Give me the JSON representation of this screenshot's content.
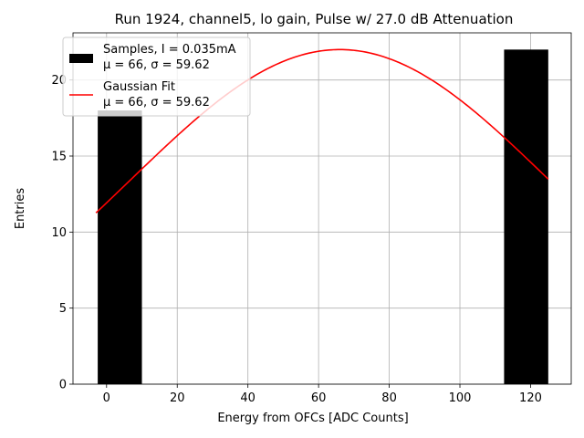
{
  "chart_data": {
    "type": "bar",
    "title": "Run 1924, channel5, lo gain, Pulse w/ 27.0 dB Attenuation",
    "xlabel": "Energy from OFCs [ADC Counts]",
    "ylabel": "Entries",
    "xlim": [
      -9.5,
      131.5
    ],
    "ylim": [
      0,
      23.1
    ],
    "xticks": [
      0,
      20,
      40,
      60,
      80,
      100,
      120
    ],
    "yticks": [
      0,
      5,
      10,
      15,
      20
    ],
    "grid": true,
    "bars": [
      {
        "x_start": -2.5,
        "x_end": 10,
        "value": 18
      },
      {
        "x_start": 112.5,
        "x_end": 125,
        "value": 22
      }
    ],
    "fit": {
      "type": "gaussian",
      "mu": 66,
      "sigma": 59.62,
      "amplitude": 22,
      "x_range": [
        -3,
        125
      ]
    },
    "colors": {
      "bars": "#000000",
      "fit": "#ff0000",
      "grid": "#b0b0b0"
    },
    "legend": {
      "placement": "top-left",
      "entries": [
        {
          "line1": "Samples, I = 0.035mA",
          "line2": "μ = 66, σ = 59.62",
          "kind": "bar"
        },
        {
          "line1": "Gaussian Fit",
          "line2": "μ = 66, σ = 59.62",
          "kind": "line"
        }
      ]
    }
  }
}
